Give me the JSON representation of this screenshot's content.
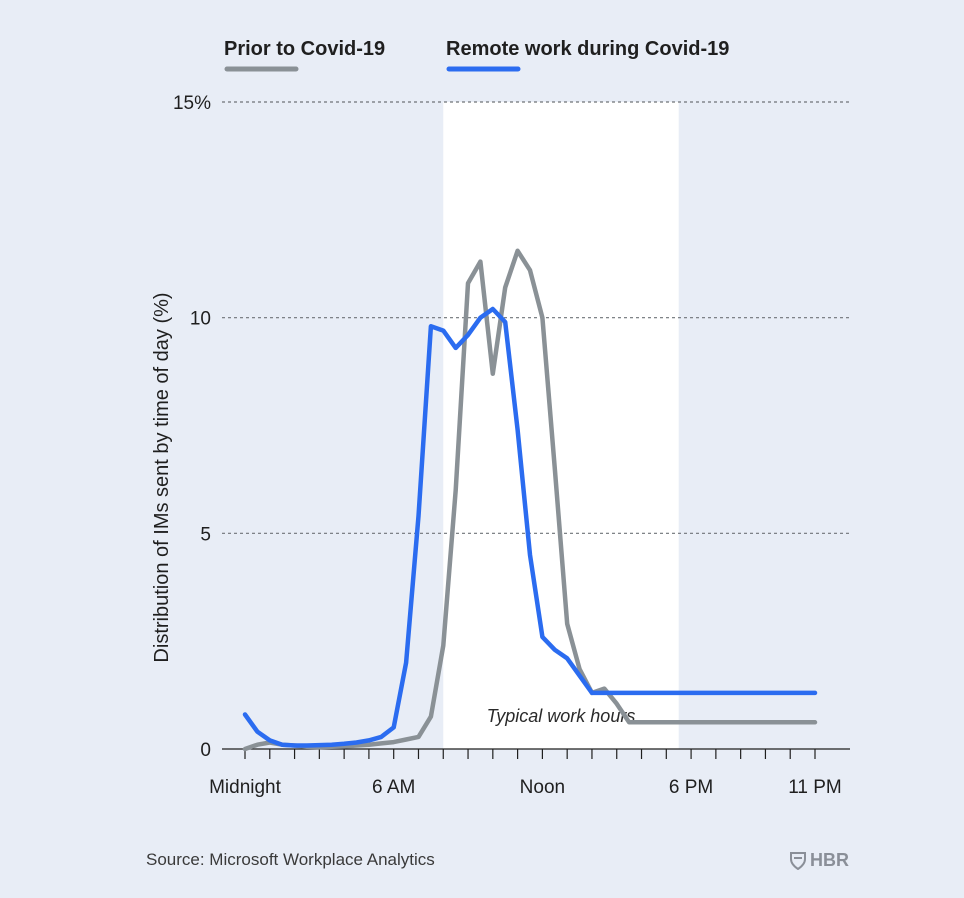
{
  "chart_data": {
    "type": "line",
    "title": "",
    "xlabel": "",
    "ylabel": "Distribution of IMs sent by time of day (%)",
    "ylim": [
      0,
      15
    ],
    "xlim": [
      0,
      23
    ],
    "y_ticks": [
      0,
      5,
      10,
      15
    ],
    "y_tick_labels": [
      "0",
      "5",
      "10",
      "15%"
    ],
    "x_ticks": [
      0,
      6,
      12,
      18,
      23
    ],
    "x_tick_labels": [
      "Midnight",
      "6 AM",
      "Noon",
      "6 PM",
      "11 PM"
    ],
    "grid": "horizontal dashed",
    "legend": "top",
    "shaded_band": {
      "x_start": 8,
      "x_end": 17.5,
      "label": "Typical work hours",
      "color": "#ffffff"
    },
    "x": [
      0,
      0.5,
      1,
      1.5,
      2,
      2.5,
      3,
      3.5,
      4,
      4.5,
      5,
      5.5,
      6,
      6.5,
      7,
      7.5,
      8,
      8.5,
      9,
      9.5,
      10,
      10.5,
      11,
      11.5,
      12,
      12.5,
      13,
      13.5,
      14,
      14.5,
      15,
      15.5,
      16,
      16.5,
      17,
      17.5,
      18,
      18.5,
      19,
      19.5,
      20,
      20.5,
      21,
      21.5,
      22,
      22.5,
      23
    ],
    "series": [
      {
        "name": "Prior to Covid-19",
        "color": "#8a9196",
        "values": [
          0.0,
          0.1,
          0.15,
          0.1,
          0.08,
          0.05,
          0.04,
          0.05,
          0.06,
          0.08,
          0.1,
          0.13,
          0.16,
          0.22,
          0.28,
          0.75,
          2.4,
          6.0,
          10.8,
          11.3,
          8.7,
          10.7,
          11.55,
          11.1,
          10.0,
          6.5,
          2.9,
          1.85,
          1.3,
          1.4,
          1.05,
          0.62,
          0.62,
          0.62,
          0.62,
          0.62,
          0.62,
          0.62,
          0.62,
          0.62,
          0.62,
          0.62,
          0.62,
          0.62,
          0.62,
          0.62,
          0.62
        ]
      },
      {
        "name": "Remote work during Covid-19",
        "color": "#2b6cf0",
        "values": [
          0.8,
          0.4,
          0.2,
          0.1,
          0.08,
          0.08,
          0.09,
          0.1,
          0.12,
          0.15,
          0.2,
          0.28,
          0.5,
          2.0,
          5.4,
          9.8,
          9.7,
          9.3,
          9.6,
          10.0,
          10.2,
          9.9,
          7.4,
          4.5,
          2.6,
          2.3,
          2.1,
          1.7,
          1.3,
          1.3,
          1.3,
          1.3,
          1.3,
          1.3,
          1.3,
          1.3,
          1.3,
          1.3,
          1.3,
          1.3,
          1.3,
          1.3,
          1.3,
          1.3,
          1.3,
          1.3,
          1.3
        ]
      }
    ]
  },
  "source": "Source: Microsoft Workplace Analytics",
  "brand": "HBR"
}
